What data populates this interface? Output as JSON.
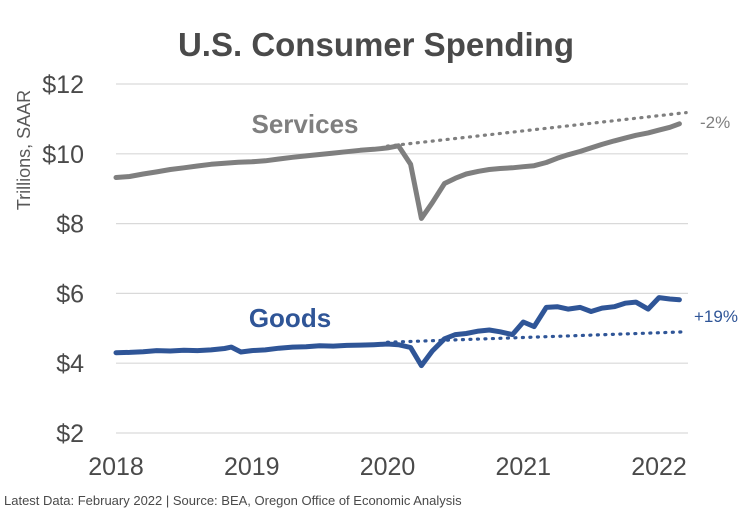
{
  "chart_data": {
    "type": "line",
    "title": "U.S. Consumer Spending",
    "ylabel": "Trillions, SAAR",
    "ylim": [
      2,
      12
    ],
    "yticks": [
      2,
      4,
      6,
      8,
      10,
      12
    ],
    "ytick_labels": [
      "$2",
      "$4",
      "$6",
      "$8",
      "$10",
      "$12"
    ],
    "xlim": [
      2018,
      2022.25
    ],
    "xticks": [
      2018,
      2019,
      2020,
      2021,
      2022
    ],
    "xtick_labels": [
      "2018",
      "2019",
      "2020",
      "2021",
      "2022"
    ],
    "grid": true,
    "colors": {
      "services": "#7f7f7f",
      "goods": "#2f5597"
    },
    "series": [
      {
        "name": "Services",
        "color": "#7f7f7f",
        "points": [
          [
            2018.0,
            9.32
          ],
          [
            2018.1,
            9.35
          ],
          [
            2018.2,
            9.42
          ],
          [
            2018.3,
            9.48
          ],
          [
            2018.4,
            9.55
          ],
          [
            2018.5,
            9.6
          ],
          [
            2018.6,
            9.65
          ],
          [
            2018.7,
            9.7
          ],
          [
            2018.8,
            9.73
          ],
          [
            2018.9,
            9.76
          ],
          [
            2019.0,
            9.77
          ],
          [
            2019.1,
            9.8
          ],
          [
            2019.2,
            9.85
          ],
          [
            2019.3,
            9.9
          ],
          [
            2019.4,
            9.94
          ],
          [
            2019.5,
            9.98
          ],
          [
            2019.6,
            10.02
          ],
          [
            2019.7,
            10.06
          ],
          [
            2019.8,
            10.1
          ],
          [
            2019.9,
            10.13
          ],
          [
            2020.0,
            10.17
          ],
          [
            2020.08,
            10.23
          ],
          [
            2020.17,
            9.7
          ],
          [
            2020.25,
            8.15
          ],
          [
            2020.33,
            8.6
          ],
          [
            2020.42,
            9.15
          ],
          [
            2020.5,
            9.3
          ],
          [
            2020.58,
            9.42
          ],
          [
            2020.67,
            9.5
          ],
          [
            2020.75,
            9.55
          ],
          [
            2020.83,
            9.58
          ],
          [
            2020.92,
            9.6
          ],
          [
            2021.0,
            9.63
          ],
          [
            2021.08,
            9.66
          ],
          [
            2021.17,
            9.75
          ],
          [
            2021.25,
            9.87
          ],
          [
            2021.33,
            9.97
          ],
          [
            2021.42,
            10.07
          ],
          [
            2021.5,
            10.17
          ],
          [
            2021.58,
            10.27
          ],
          [
            2021.67,
            10.37
          ],
          [
            2021.75,
            10.45
          ],
          [
            2021.83,
            10.53
          ],
          [
            2021.92,
            10.6
          ],
          [
            2022.0,
            10.68
          ],
          [
            2022.08,
            10.76
          ],
          [
            2022.15,
            10.86
          ]
        ],
        "trend": [
          [
            2020.0,
            10.22
          ],
          [
            2022.2,
            11.18
          ]
        ],
        "trend_label": "-2%"
      },
      {
        "name": "Goods",
        "color": "#2f5597",
        "points": [
          [
            2018.0,
            4.3
          ],
          [
            2018.1,
            4.31
          ],
          [
            2018.2,
            4.33
          ],
          [
            2018.3,
            4.36
          ],
          [
            2018.4,
            4.35
          ],
          [
            2018.5,
            4.37
          ],
          [
            2018.6,
            4.36
          ],
          [
            2018.7,
            4.38
          ],
          [
            2018.8,
            4.42
          ],
          [
            2018.85,
            4.46
          ],
          [
            2018.92,
            4.32
          ],
          [
            2019.0,
            4.36
          ],
          [
            2019.1,
            4.38
          ],
          [
            2019.2,
            4.43
          ],
          [
            2019.3,
            4.46
          ],
          [
            2019.4,
            4.47
          ],
          [
            2019.5,
            4.5
          ],
          [
            2019.6,
            4.49
          ],
          [
            2019.7,
            4.51
          ],
          [
            2019.8,
            4.52
          ],
          [
            2019.9,
            4.53
          ],
          [
            2020.0,
            4.55
          ],
          [
            2020.08,
            4.53
          ],
          [
            2020.17,
            4.45
          ],
          [
            2020.25,
            3.93
          ],
          [
            2020.33,
            4.35
          ],
          [
            2020.42,
            4.7
          ],
          [
            2020.5,
            4.82
          ],
          [
            2020.58,
            4.85
          ],
          [
            2020.67,
            4.92
          ],
          [
            2020.75,
            4.95
          ],
          [
            2020.83,
            4.9
          ],
          [
            2020.92,
            4.82
          ],
          [
            2021.0,
            5.18
          ],
          [
            2021.08,
            5.05
          ],
          [
            2021.17,
            5.6
          ],
          [
            2021.25,
            5.62
          ],
          [
            2021.33,
            5.55
          ],
          [
            2021.42,
            5.6
          ],
          [
            2021.5,
            5.48
          ],
          [
            2021.58,
            5.58
          ],
          [
            2021.67,
            5.62
          ],
          [
            2021.75,
            5.72
          ],
          [
            2021.83,
            5.75
          ],
          [
            2021.92,
            5.55
          ],
          [
            2022.0,
            5.88
          ],
          [
            2022.08,
            5.84
          ],
          [
            2022.15,
            5.82
          ]
        ],
        "trend": [
          [
            2020.0,
            4.6
          ],
          [
            2022.2,
            4.9
          ]
        ],
        "trend_label": "+19%"
      }
    ],
    "footer": "Latest Data: February 2022  |  Source: BEA, Oregon Office of Economic Analysis"
  }
}
